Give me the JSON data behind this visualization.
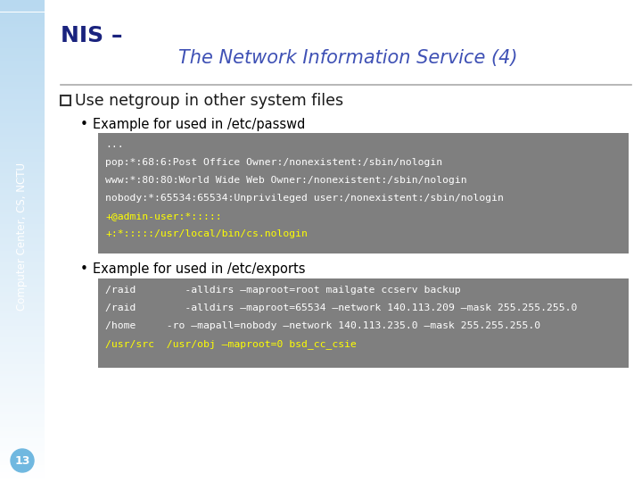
{
  "title1": "NIS –",
  "title2": "The Network Information Service (4)",
  "sidebar_text": "Computer Center, CS, NCTU",
  "title1_color": "#1a237e",
  "title2_color": "#3f51b5",
  "main_bg": "#ffffff",
  "bullet_header_color": "#1a1a1a",
  "code_bg": "#7f7f7f",
  "code_text_color": "#ffffff",
  "code_highlight_color": "#ffff00",
  "page_num": "13",
  "page_num_bg": "#70b8e0",
  "line_color": "#aaaaaa",
  "code_block1": [
    {
      "text": "...",
      "highlight": false
    },
    {
      "text": "pop:*:68:6:Post Office Owner:/nonexistent:/sbin/nologin",
      "highlight": false
    },
    {
      "text": "www:*:80:80:World Wide Web Owner:/nonexistent:/sbin/nologin",
      "highlight": false
    },
    {
      "text": "nobody:*:65534:65534:Unprivileged user:/nonexistent:/sbin/nologin",
      "highlight": false
    },
    {
      "text": "+@admin-user:*:::::",
      "highlight": true
    },
    {
      "text": "+:*:::::/usr/local/bin/cs.nologin",
      "highlight": true
    }
  ],
  "code_block2": [
    {
      "text": "/raid        -alldirs –maproot=root mailgate ccserv backup",
      "highlight": false
    },
    {
      "text": "/raid        -alldirs –maproot=65534 –network 140.113.209 –mask 255.255.255.0",
      "highlight": false
    },
    {
      "text": "/home     -ro –mapall=nobody –network 140.113.235.0 –mask 255.255.255.0",
      "highlight": false
    },
    {
      "text": "/usr/src  /usr/obj –maproot=0 bsd_cc_csie",
      "highlight": true
    }
  ]
}
